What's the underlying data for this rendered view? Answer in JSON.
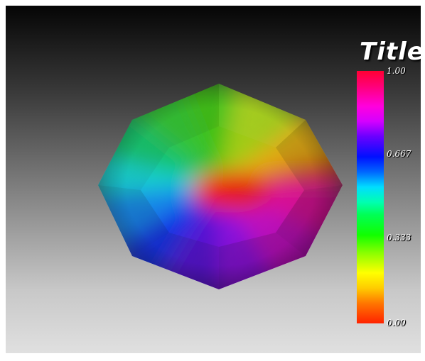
{
  "colorbar": {
    "title": "Title",
    "tick_labels": [
      "1.00",
      "0.667",
      "0.333",
      "0.00"
    ]
  },
  "colors": {
    "background_top": "#050505",
    "background_bottom": "#e0e0e0",
    "scalar_high": "#ff0033",
    "scalar_low": "#ff2200"
  }
}
